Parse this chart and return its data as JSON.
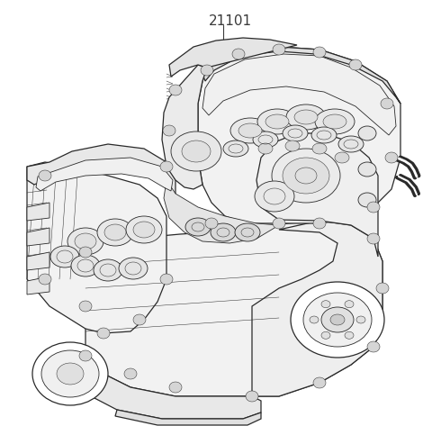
{
  "background_color": "#ffffff",
  "label_text": "21101",
  "label_fontsize": 11,
  "label_color": "#3a3a3a",
  "fig_width": 4.8,
  "fig_height": 4.73,
  "dpi": 100,
  "lc": "#2a2a2a",
  "lw_main": 0.9,
  "lw_med": 0.6,
  "lw_thin": 0.35
}
